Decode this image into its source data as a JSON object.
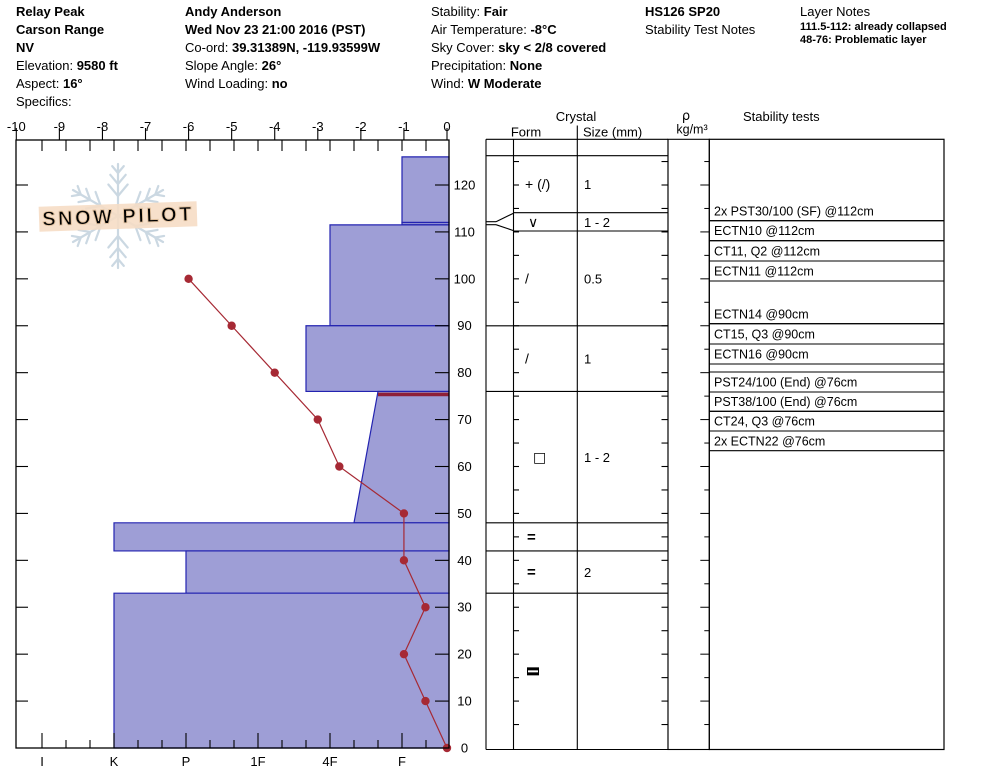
{
  "header": {
    "col1": {
      "title_lines": [
        "Relay Peak",
        "Carson Range",
        "NV"
      ],
      "fields": [
        {
          "label": "Elevation: ",
          "value": "9580 ft"
        },
        {
          "label": "Aspect: ",
          "value": "16°"
        },
        {
          "label": "Specifics:",
          "value": ""
        }
      ]
    },
    "col2": {
      "title_lines": [
        "Andy Anderson",
        "Wed Nov 23 21:00 2016 (PST)"
      ],
      "fields": [
        {
          "label": "Co-ord: ",
          "value": "39.31389N, -119.93599W"
        },
        {
          "label": "Slope Angle: ",
          "value": "26°"
        },
        {
          "label": "Wind Loading: ",
          "value": "no"
        }
      ]
    },
    "col3": {
      "fields": [
        {
          "label": "Stability: ",
          "value": "Fair"
        },
        {
          "label": "Air Temperature: ",
          "value": "-8°C"
        },
        {
          "label": "Sky Cover: ",
          "value": "sky < 2/8 covered"
        },
        {
          "label": "Precipitation: ",
          "value": "None"
        },
        {
          "label": "Wind:  ",
          "value": "W Moderate"
        }
      ]
    },
    "col4": {
      "line1": "HS126 SP20",
      "line2": "Stability Test Notes"
    },
    "col5": {
      "title": "Layer Notes",
      "notes": [
        "111.5-112: already collapsed",
        "48-76: Problematic layer"
      ]
    }
  },
  "watermark": {
    "text": "SNOW PILOT"
  },
  "colors": {
    "bar_fill": "#9e9ed6",
    "bar_border": "#2323b0",
    "temp_line": "#a62934",
    "temp_dot": "#a62934",
    "red_layer": "#8e2038",
    "watermark_banner": "#f6dcc4",
    "watermark_flake": "#cbd8e2"
  },
  "chart_data": {
    "type": "bar",
    "subtype": "snow-pit-hardness-and-temperature-profile",
    "title": "",
    "snow_height_cm": 126,
    "depth_axis": {
      "unit": "cm",
      "min": 0,
      "max": 130,
      "tick_step": 10,
      "tick_labels": [
        "120",
        "110",
        "100",
        "90",
        "80",
        "70",
        "60",
        "50",
        "40",
        "30",
        "20",
        "10",
        "0"
      ]
    },
    "temperature_axis": {
      "position": "top",
      "unit": "°C",
      "min": -10,
      "max": 0,
      "tick_labels": [
        "-10",
        "-9",
        "-8",
        "-7",
        "-6",
        "-5",
        "-4",
        "-3",
        "-2",
        "-1",
        "0"
      ]
    },
    "hardness_axis": {
      "position": "bottom",
      "tick_labels": [
        "I",
        "K",
        "P",
        "1F",
        "4F",
        "F"
      ]
    },
    "layers": [
      {
        "top_cm": 126,
        "bottom_cm": 112,
        "hardness": "F",
        "grain_form": "+ (/)",
        "grain_size_mm": "1"
      },
      {
        "top_cm": 112,
        "bottom_cm": 111.5,
        "hardness": "F",
        "grain_form": "V",
        "grain_size_mm": "1 - 2"
      },
      {
        "top_cm": 111.5,
        "bottom_cm": 90,
        "hardness": "4F",
        "grain_form": "/",
        "grain_size_mm": "0.5"
      },
      {
        "top_cm": 90,
        "bottom_cm": 76,
        "hardness": "4F+",
        "grain_form": "/",
        "grain_size_mm": "1"
      },
      {
        "top_cm": 76,
        "bottom_cm": 48,
        "hardness": "F+",
        "hardness_bottom": "4F-",
        "grain_form": "square",
        "grain_size_mm": "1 - 2",
        "highlight_top_red": true
      },
      {
        "top_cm": 48,
        "bottom_cm": 42,
        "hardness": "K",
        "grain_form": "=",
        "grain_size_mm": ""
      },
      {
        "top_cm": 42,
        "bottom_cm": 33,
        "hardness": "P",
        "grain_form": "=",
        "grain_size_mm": "2"
      },
      {
        "top_cm": 33,
        "bottom_cm": 0,
        "hardness": "K",
        "grain_form": "crust",
        "grain_size_mm": ""
      }
    ],
    "temperature_profile": [
      {
        "depth_cm": 0,
        "temp_c": 0
      },
      {
        "depth_cm": 10,
        "temp_c": -0.5
      },
      {
        "depth_cm": 20,
        "temp_c": -1
      },
      {
        "depth_cm": 30,
        "temp_c": -0.5
      },
      {
        "depth_cm": 40,
        "temp_c": -1
      },
      {
        "depth_cm": 50,
        "temp_c": -1
      },
      {
        "depth_cm": 60,
        "temp_c": -2.5
      },
      {
        "depth_cm": 70,
        "temp_c": -3
      },
      {
        "depth_cm": 80,
        "temp_c": -4
      },
      {
        "depth_cm": 90,
        "temp_c": -5
      },
      {
        "depth_cm": 100,
        "temp_c": -6
      }
    ],
    "crystal_header": {
      "group": "Crystal",
      "form": "Form",
      "size": "Size (mm)"
    },
    "density_header": {
      "rho": "ρ",
      "unit": "kg/m³"
    },
    "stability_tests_header": "Stability tests",
    "stability_tests": [
      "2x PST30/100 (SF) @112cm",
      "ECTN10 @112cm",
      "CT11, Q2 @112cm",
      "ECTN11 @112cm",
      "ECTN14 @90cm",
      "CT15, Q3 @90cm",
      "ECTN16 @90cm",
      "PST24/100 (End) @76cm",
      "PST38/100 (End) @76cm",
      "CT24, Q3 @76cm",
      "2x ECTN22 @76cm"
    ]
  }
}
